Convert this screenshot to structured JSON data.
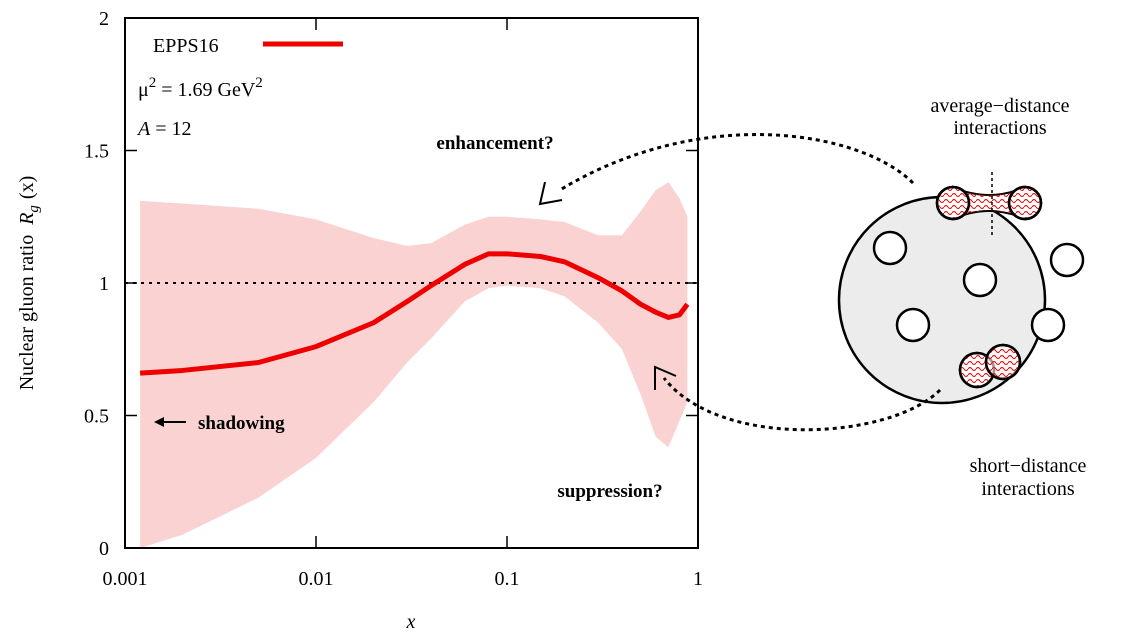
{
  "chart_data": {
    "type": "band-line",
    "x_label": "x",
    "y_label": [
      "Nuclear gluon ratio",
      "R",
      "g",
      "(x)"
    ],
    "xscale": "log",
    "xlim": [
      0.001,
      1
    ],
    "xticks": [
      0.001,
      0.01,
      0.1,
      1
    ],
    "ylim": [
      0,
      2
    ],
    "yticks": [
      0,
      0.5,
      1,
      1.5,
      2
    ],
    "reference_line": 1,
    "x": [
      0.0012,
      0.002,
      0.005,
      0.01,
      0.02,
      0.03,
      0.04,
      0.06,
      0.08,
      0.1,
      0.15,
      0.2,
      0.3,
      0.4,
      0.5,
      0.6,
      0.7,
      0.8,
      0.88
    ],
    "series": [
      {
        "name": "EPPS16",
        "color": "#ee0000",
        "values": [
          0.66,
          0.67,
          0.7,
          0.76,
          0.85,
          0.93,
          0.99,
          1.07,
          1.11,
          1.11,
          1.1,
          1.08,
          1.02,
          0.97,
          0.92,
          0.89,
          0.87,
          0.88,
          0.92
        ],
        "band_color": "#fbd2d2",
        "upper": [
          1.31,
          1.3,
          1.28,
          1.24,
          1.17,
          1.14,
          1.15,
          1.22,
          1.25,
          1.25,
          1.24,
          1.23,
          1.18,
          1.18,
          1.27,
          1.35,
          1.38,
          1.32,
          1.25
        ],
        "lower": [
          0.0,
          0.05,
          0.19,
          0.34,
          0.55,
          0.7,
          0.79,
          0.93,
          0.98,
          0.99,
          0.98,
          0.95,
          0.85,
          0.75,
          0.58,
          0.42,
          0.38,
          0.48,
          0.55
        ]
      }
    ],
    "scale_label": [
      "μ",
      "2",
      " = 1.69 GeV",
      "2"
    ],
    "nucleus_label": [
      "A",
      " = 12"
    ],
    "annotations": {
      "enhancement": "enhancement?",
      "suppression": "suppression?",
      "shadowing": "shadowing"
    }
  },
  "diagram": {
    "average_distance": [
      "average−distance",
      "interactions"
    ],
    "short_distance": [
      "short−distance",
      "interactions"
    ]
  }
}
